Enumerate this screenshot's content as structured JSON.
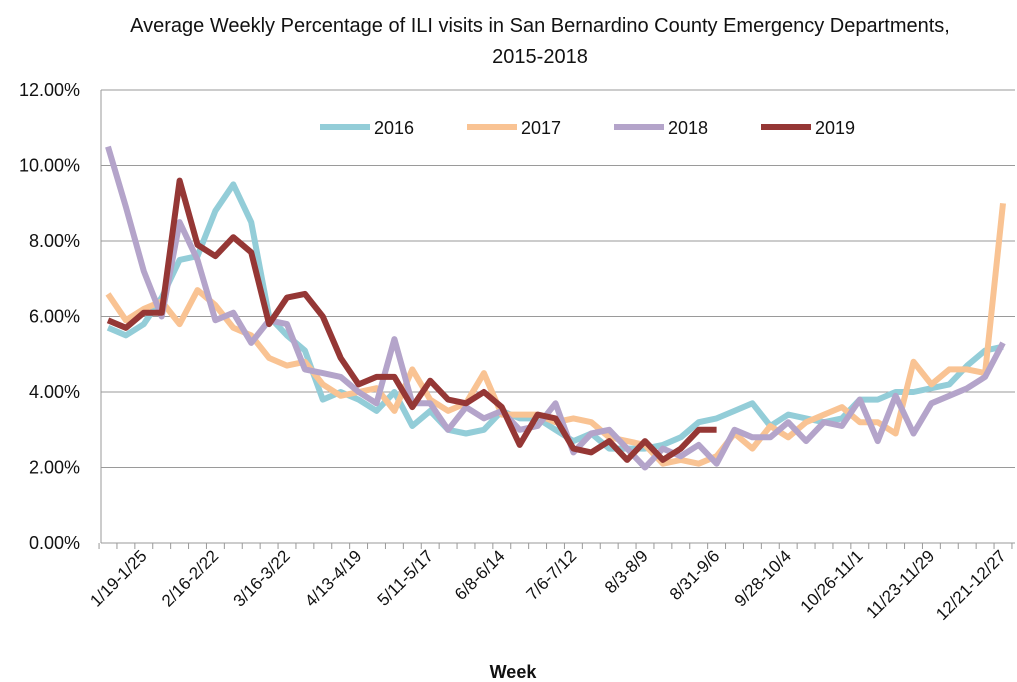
{
  "chart_data": {
    "type": "line",
    "title": "Average Weekly  Percentage of ILI visits in San Bernardino County Emergency Departments,",
    "subtitle": "2015-2018",
    "x_label": "Week",
    "categories": [
      null,
      null,
      "1/19-1/25",
      null,
      null,
      null,
      "2/16-2/22",
      null,
      null,
      null,
      "3/16-3/22",
      null,
      null,
      null,
      "4/13-4/19",
      null,
      null,
      null,
      "5/11-5/17",
      null,
      null,
      null,
      "6/8-6/14",
      null,
      null,
      null,
      "7/6-7/12",
      null,
      null,
      null,
      "8/3-8/9",
      null,
      null,
      null,
      "8/31-9/6",
      null,
      null,
      null,
      "9/28-10/4",
      null,
      null,
      null,
      "10/26-11/1",
      null,
      null,
      null,
      "11/23-11/29",
      null,
      null,
      null,
      "12/21-12/27"
    ],
    "series": [
      {
        "name": "2016",
        "color": "#93cdd8",
        "values": [
          5.7,
          5.5,
          5.8,
          6.5,
          7.5,
          7.6,
          8.8,
          9.5,
          8.5,
          6.0,
          5.5,
          5.1,
          3.8,
          4.0,
          3.8,
          3.5,
          4.0,
          3.1,
          3.5,
          3.0,
          2.9,
          3.0,
          3.5,
          3.3,
          3.3,
          3.0,
          2.7,
          2.9,
          2.5,
          2.5,
          2.5,
          2.6,
          2.8,
          3.2,
          3.3,
          3.5,
          3.7,
          3.1,
          3.4,
          3.3,
          3.2,
          3.3,
          3.8,
          3.8,
          4.0,
          4.0,
          4.1,
          4.2,
          4.7,
          5.1,
          5.2
        ]
      },
      {
        "name": "2017",
        "color": "#f9c393",
        "values": [
          6.6,
          5.9,
          6.2,
          6.4,
          5.8,
          6.7,
          6.3,
          5.7,
          5.5,
          4.9,
          4.7,
          4.8,
          4.2,
          3.9,
          4.0,
          4.1,
          3.5,
          4.6,
          3.8,
          3.5,
          3.7,
          4.5,
          3.4,
          3.4,
          3.4,
          3.2,
          3.3,
          3.2,
          2.8,
          2.7,
          2.6,
          2.1,
          2.2,
          2.1,
          2.3,
          2.9,
          2.5,
          3.1,
          2.8,
          3.2,
          3.4,
          3.6,
          3.2,
          3.2,
          2.9,
          4.8,
          4.2,
          4.6,
          4.6,
          4.5,
          9.0
        ]
      },
      {
        "name": "2018",
        "color": "#b4a4ca",
        "values": [
          10.5,
          8.9,
          7.2,
          6.0,
          8.5,
          7.5,
          5.9,
          6.1,
          5.3,
          5.9,
          5.8,
          4.6,
          4.5,
          4.4,
          4.0,
          3.7,
          5.4,
          3.7,
          3.7,
          3.0,
          3.6,
          3.3,
          3.5,
          3.0,
          3.1,
          3.7,
          2.4,
          2.9,
          3.0,
          2.5,
          2.0,
          2.5,
          2.3,
          2.6,
          2.1,
          3.0,
          2.8,
          2.8,
          3.2,
          2.7,
          3.2,
          3.1,
          3.8,
          2.7,
          3.9,
          2.9,
          3.7,
          3.9,
          4.1,
          4.4,
          5.3
        ]
      },
      {
        "name": "2019",
        "color": "#953735",
        "values": [
          5.9,
          5.7,
          6.1,
          6.1,
          9.6,
          7.9,
          7.6,
          8.1,
          7.7,
          5.8,
          6.5,
          6.6,
          6.0,
          4.9,
          4.2,
          4.4,
          4.4,
          3.6,
          4.3,
          3.8,
          3.7,
          4.0,
          3.6,
          2.6,
          3.4,
          3.3,
          2.5,
          2.4,
          2.7,
          2.2,
          2.7,
          2.2,
          2.5,
          3.0,
          3.0,
          null,
          null,
          null,
          null,
          null,
          null,
          null,
          null,
          null,
          null,
          null,
          null,
          null,
          null,
          null,
          null
        ]
      }
    ],
    "ylim": [
      0,
      12
    ],
    "yticks": [
      {
        "value": 0,
        "label": "0.00%"
      },
      {
        "value": 2,
        "label": "2.00%"
      },
      {
        "value": 4,
        "label": "4.00%"
      },
      {
        "value": 6,
        "label": "6.00%"
      },
      {
        "value": 8,
        "label": "8.00%"
      },
      {
        "value": 10,
        "label": "10.00%"
      },
      {
        "value": 12,
        "label": "12.00%"
      }
    ],
    "grid": true,
    "legend": "top"
  }
}
